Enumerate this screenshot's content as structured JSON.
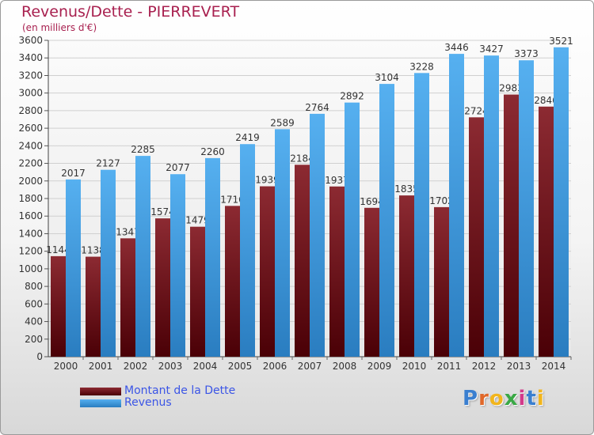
{
  "header": {
    "title": "Revenus/Dette - PIERREVERT",
    "subtitle": "(en milliers d'€)"
  },
  "legend": {
    "items": [
      {
        "label": "Montant de la Dette",
        "color": "#7a1e26"
      },
      {
        "label": "Revenus",
        "color": "#4aa3e8"
      }
    ]
  },
  "logo": {
    "text": "Proxiti"
  },
  "chart_data": {
    "type": "bar",
    "title": "Revenus/Dette - PIERREVERT",
    "subtitle": "(en milliers d'€)",
    "categories": [
      "2000",
      "2001",
      "2002",
      "2003",
      "2004",
      "2005",
      "2006",
      "2007",
      "2008",
      "2009",
      "2010",
      "2011",
      "2012",
      "2013",
      "2014"
    ],
    "series": [
      {
        "name": "Montant de la Dette",
        "color": "#7a1e26",
        "values": [
          1144,
          1138,
          1347,
          1574,
          1479,
          1716,
          1939,
          2184,
          1937,
          1694,
          1835,
          1702,
          2724,
          2983,
          2846
        ],
        "labels": [
          "1144",
          "1138",
          "1347",
          "1574",
          "1479",
          "1716",
          "1939",
          "2184",
          "1937",
          "1694",
          "1835",
          "1702",
          "2724",
          "2983",
          "2846"
        ]
      },
      {
        "name": "Revenus",
        "color": "#4aa3e8",
        "values": [
          2017,
          2127,
          2285,
          2077,
          2260,
          2419,
          2589,
          2764,
          2892,
          3104,
          3228,
          3446,
          3427,
          3373,
          3521
        ],
        "labels": [
          "2017",
          "2127",
          "2285",
          "2077",
          "2260",
          "2419",
          "2589",
          "2764",
          "2892",
          "3104",
          "3228",
          "3446",
          "3427",
          "3373",
          "3521"
        ]
      }
    ],
    "ylim": [
      0,
      3600
    ],
    "yticks": [
      0,
      200,
      400,
      600,
      800,
      1000,
      1200,
      1400,
      1600,
      1800,
      2000,
      2200,
      2400,
      2600,
      2800,
      3000,
      3200,
      3400,
      3600
    ],
    "grid": true,
    "legend_position": "bottom-left"
  }
}
